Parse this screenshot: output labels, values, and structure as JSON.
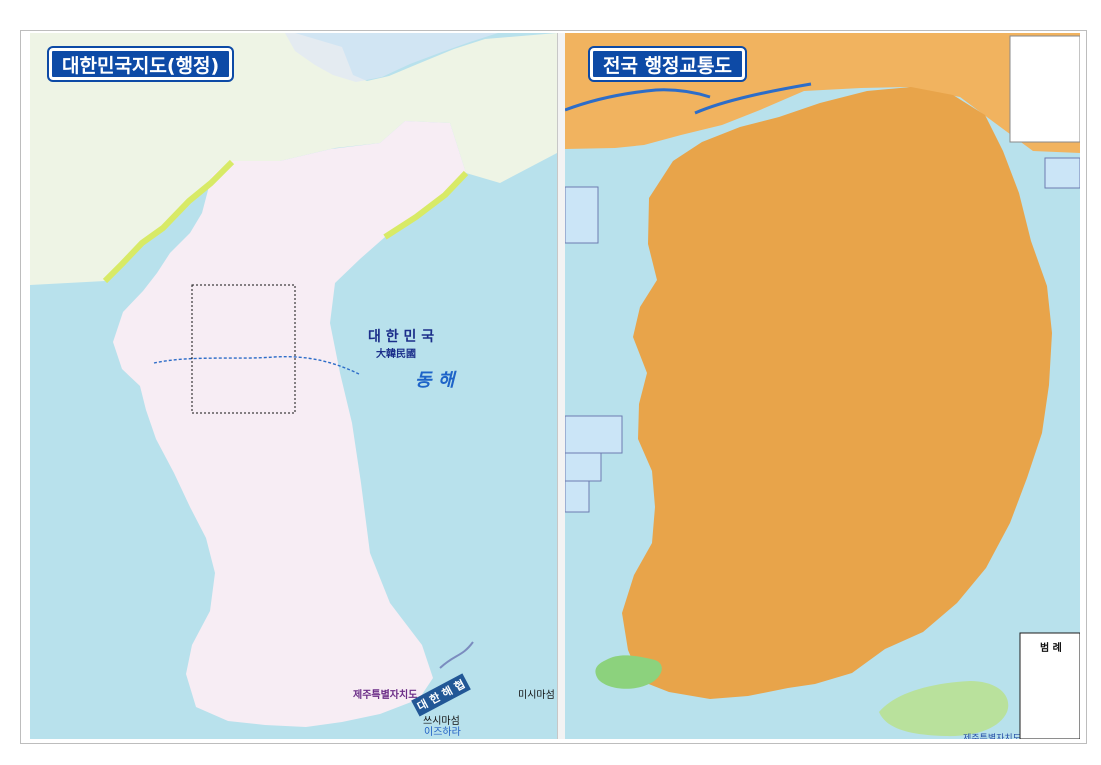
{
  "left_map": {
    "title": "대한민국지도(행정)",
    "sea_label": "동 해",
    "country_korean": "대 한 민 국",
    "country_hanja": "大韓民國",
    "strait_label": "대 한 해 협",
    "jeju_inset_label": "제주특별자치도",
    "japan_island_label": "미시마섬",
    "ieodo_label": "쓰시마섬",
    "ieodo_sub": "이즈하라"
  },
  "right_map": {
    "title": "전국 행정교통도",
    "jeju_label": "제주특별자치도",
    "legend_title": "범 례"
  },
  "colors": {
    "sea": "#b8e1ec",
    "north_land": "#f8eef5",
    "china_land": "#e7f1de",
    "south_left": "#f7ecf0",
    "south_right": "#e8a44a",
    "border_yellow": "#d8ea66",
    "title_bg": "#0d4aa6"
  }
}
